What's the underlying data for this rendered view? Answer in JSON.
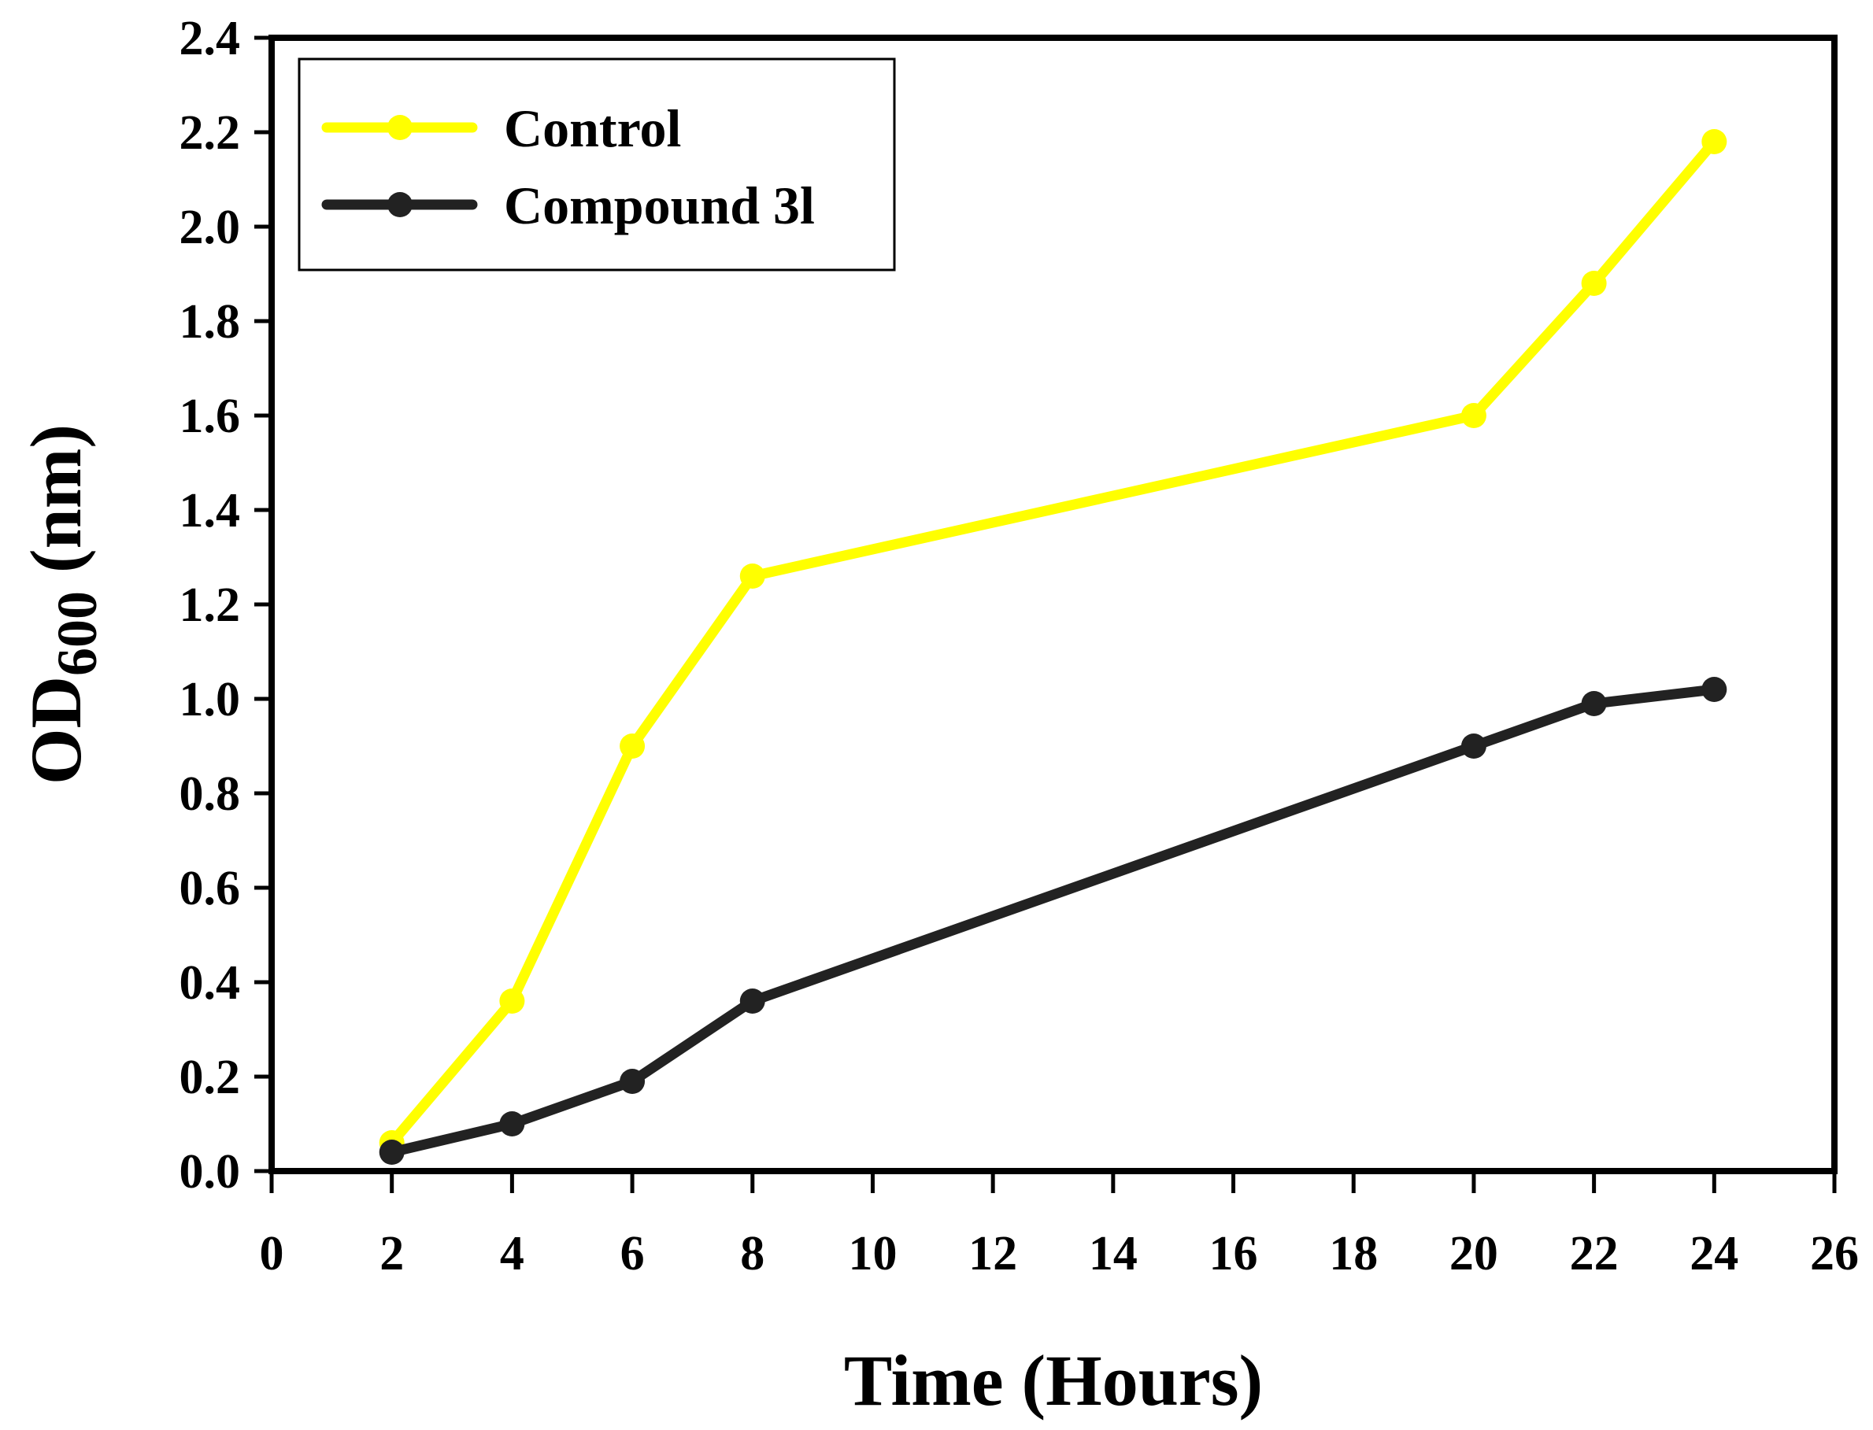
{
  "chart_data": {
    "type": "line",
    "title": "",
    "xlabel": "Time (Hours)",
    "ylabel_main": "OD",
    "ylabel_sub": "600",
    "ylabel_unit": " (nm)",
    "xlim": [
      0,
      26
    ],
    "ylim": [
      0,
      2.4
    ],
    "xticks": [
      "0",
      "2",
      "4",
      "6",
      "8",
      "10",
      "12",
      "14",
      "16",
      "18",
      "20",
      "22",
      "24",
      "26"
    ],
    "yticks": [
      "0.0",
      "0.2",
      "0.4",
      "0.6",
      "0.8",
      "1.0",
      "1.2",
      "1.4",
      "1.6",
      "1.8",
      "2.0",
      "2.2",
      "2.4"
    ],
    "grid": false,
    "legend_position": "top-left",
    "x": [
      2,
      4,
      6,
      8,
      20,
      22,
      24
    ],
    "series": [
      {
        "name": "Control",
        "color": "#ffff00",
        "values": [
          0.06,
          0.36,
          0.9,
          1.26,
          1.6,
          1.88,
          2.18
        ]
      },
      {
        "name": "Compound 3l",
        "color": "#222222",
        "values": [
          0.04,
          0.1,
          0.19,
          0.36,
          0.9,
          0.99,
          1.02
        ]
      }
    ]
  }
}
